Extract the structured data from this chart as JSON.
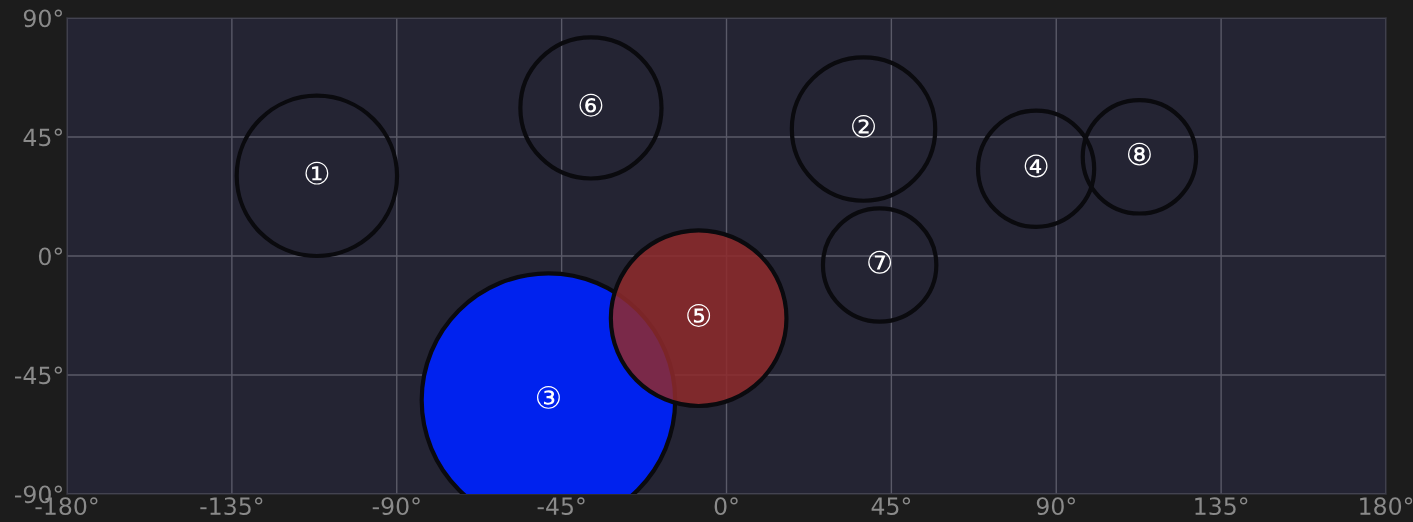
{
  "chart_data": {
    "type": "bubble",
    "x": [
      -111.8,
      37.4,
      -48.6,
      84.5,
      -7.6,
      -37,
      41.8,
      112.7
    ],
    "values": [
      30.3,
      48,
      -54.5,
      33,
      -23.5,
      56,
      -3.4,
      37.5
    ],
    "sizes": [
      0.4,
      0.32,
      1,
      0.21,
      0.48,
      0.31,
      0.2,
      0.2
    ],
    "colors": [
      null,
      null,
      "#0022ee",
      null,
      "#8f2a2c",
      null,
      null,
      null
    ],
    "value_labels": [
      "①",
      "②",
      "③",
      "④",
      "⑤",
      "⑥",
      "⑦",
      "⑧"
    ],
    "xlim": [
      -180,
      180
    ],
    "ylim": [
      -90,
      90
    ],
    "xticks": [
      {
        "value": -180,
        "label": "-180°"
      },
      {
        "value": -135,
        "label": "-135°"
      },
      {
        "value": -90,
        "label": "-90°"
      },
      {
        "value": -45,
        "label": "-45°"
      },
      {
        "value": 0,
        "label": "0°"
      },
      {
        "value": 45,
        "label": "45°"
      },
      {
        "value": 90,
        "label": "90°"
      },
      {
        "value": 135,
        "label": "135°"
      },
      {
        "value": 180,
        "label": "180°"
      }
    ],
    "yticks": [
      {
        "value": -90,
        "label": "-90°"
      },
      {
        "value": -45,
        "label": "-45°"
      },
      {
        "value": 0,
        "label": "0°"
      },
      {
        "value": 45,
        "label": "45°"
      },
      {
        "value": 90,
        "label": "90°"
      }
    ],
    "grid": true
  }
}
